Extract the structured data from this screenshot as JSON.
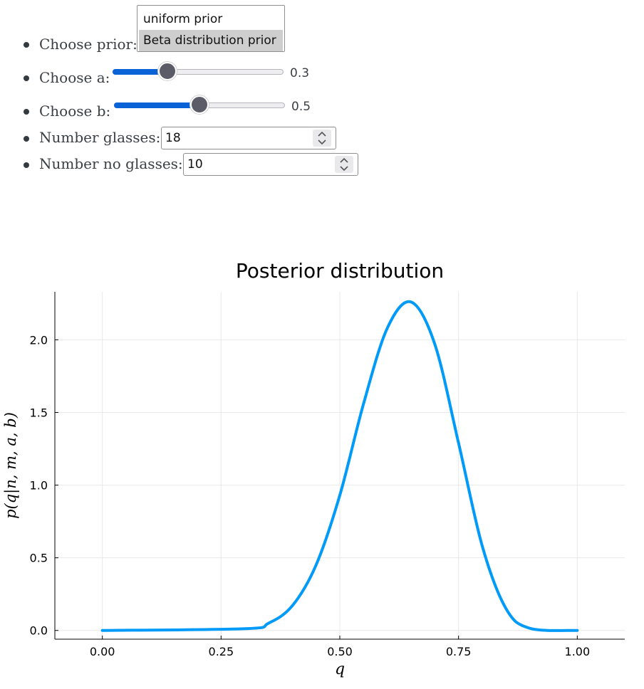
{
  "controls": {
    "prior_label": "Choose prior:",
    "prior_options": [
      "uniform prior",
      "Beta distribution prior"
    ],
    "prior_selected": "Beta distribution prior",
    "a_label": "Choose a:",
    "a_value": "0.3",
    "a_fraction": 0.3,
    "b_label": "Choose b:",
    "b_value": "0.5",
    "b_fraction": 0.5,
    "glasses_label": "Number glasses:",
    "glasses_value": "18",
    "noglasses_label": "Number no glasses:",
    "noglasses_value": "10",
    "icons": [
      "chevron-up-down-icon"
    ]
  },
  "chart_data": {
    "type": "line",
    "title": "Posterior distribution",
    "xlabel": "q",
    "ylabel": "p(q|n, m, a, b)",
    "xlim": [
      -0.1,
      1.1
    ],
    "ylim": [
      -0.06,
      2.33
    ],
    "xticks": [
      0.0,
      0.25,
      0.5,
      0.75,
      1.0
    ],
    "xtick_labels": [
      "0.00",
      "0.25",
      "0.50",
      "0.75",
      "1.00"
    ],
    "yticks": [
      0.0,
      0.5,
      1.0,
      1.5,
      2.0
    ],
    "ytick_labels": [
      "0.0",
      "0.5",
      "1.0",
      "1.5",
      "2.0"
    ],
    "grid": true,
    "series": [
      {
        "color": "#009af9",
        "x": [
          0.0,
          0.3,
          0.35,
          0.4,
          0.45,
          0.5,
          0.55,
          0.6,
          0.65,
          0.7,
          0.75,
          0.8,
          0.85,
          0.9,
          1.0
        ],
        "y": [
          0.0,
          0.012,
          0.05,
          0.17,
          0.45,
          0.93,
          1.56,
          2.08,
          2.26,
          1.97,
          1.29,
          0.58,
          0.15,
          0.015,
          0.0
        ]
      }
    ]
  }
}
